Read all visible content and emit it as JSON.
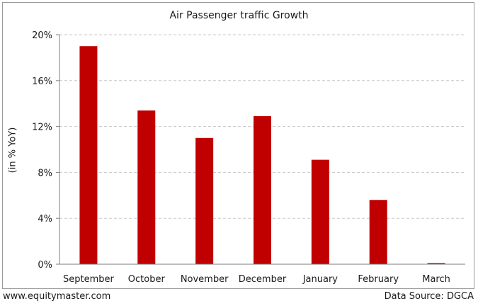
{
  "chart_data": {
    "type": "bar",
    "title": "Air Passenger traffic Growth",
    "xlabel": "",
    "ylabel": "(in % YoY)",
    "categories": [
      "September",
      "October",
      "November",
      "December",
      "January",
      "February",
      "March"
    ],
    "values": [
      19.0,
      13.4,
      11.0,
      12.9,
      9.1,
      5.6,
      0.1
    ],
    "ylim": [
      0,
      20
    ],
    "yticks": [
      0,
      4,
      8,
      12,
      16,
      20
    ],
    "ytick_labels": [
      "0%",
      "4%",
      "8%",
      "12%",
      "16%",
      "20%"
    ],
    "grid": true,
    "bar_color": "#c00000"
  },
  "footer": {
    "source_left": "www.equitymaster.com",
    "source_right": "Data Source: DGCA"
  }
}
